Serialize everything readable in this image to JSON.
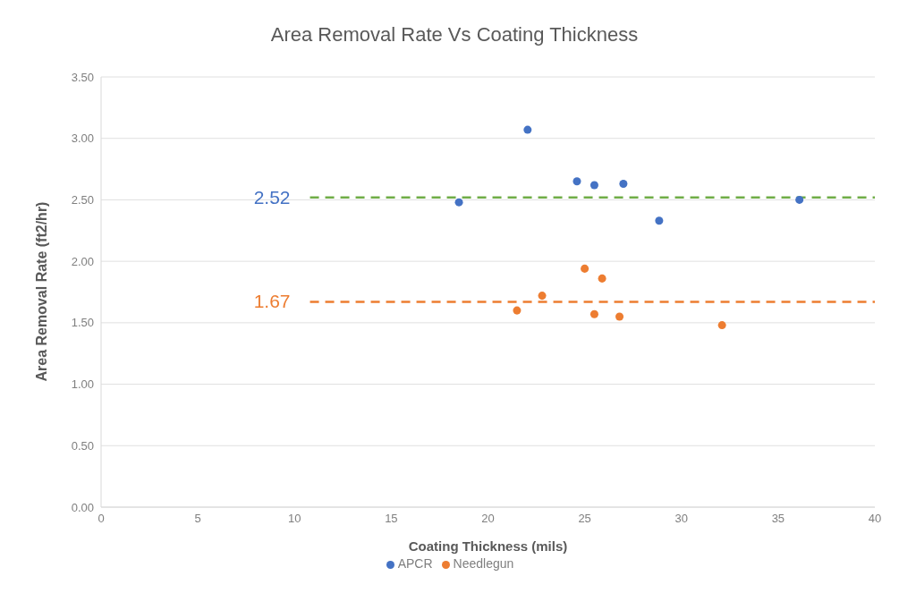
{
  "chart_data": {
    "type": "scatter",
    "title": "Area Removal Rate Vs Coating Thickness",
    "xlabel": "Coating Thickness (mils)",
    "ylabel": "Area Removal Rate (ft2/hr)",
    "series": [
      {
        "name": "APCR",
        "color": "#4472c4",
        "x": [
          18.5,
          22.05,
          24.6,
          25.5,
          27.0,
          28.85,
          36.1
        ],
        "values": [
          2.48,
          3.07,
          2.65,
          2.62,
          2.63,
          2.33,
          2.5
        ]
      },
      {
        "name": "Needlegun",
        "color": "#ed7d31",
        "x": [
          25.0,
          25.9,
          22.8,
          21.5,
          25.5,
          26.8,
          32.1
        ],
        "values": [
          1.94,
          1.86,
          1.72,
          1.6,
          1.57,
          1.55,
          1.48
        ]
      }
    ],
    "ref_lines": [
      {
        "axis": "y",
        "value": 2.52,
        "label": "2.52",
        "color": "#70ad47",
        "line_style": "dashed"
      },
      {
        "axis": "y",
        "value": 1.67,
        "label": "1.67",
        "color": "#ed7d31",
        "line_style": "dashed"
      }
    ],
    "xlim": [
      0,
      40
    ],
    "xticks": [
      0,
      5,
      10,
      15,
      20,
      25,
      30,
      35,
      40
    ],
    "ylim": [
      0,
      3.5
    ],
    "yticks": [
      {
        "value": 0,
        "label": "0.00"
      },
      {
        "value": 0.5,
        "label": "0.50"
      },
      {
        "value": 1,
        "label": "1.00"
      },
      {
        "value": 1.5,
        "label": "1.50"
      },
      {
        "value": 2,
        "label": "2.00"
      },
      {
        "value": 2.5,
        "label": "2.50"
      },
      {
        "value": 3,
        "label": "3.00"
      },
      {
        "value": 3.5,
        "label": "3.50"
      }
    ],
    "grid": "y",
    "legend": "bottom",
    "marker": "circle"
  }
}
